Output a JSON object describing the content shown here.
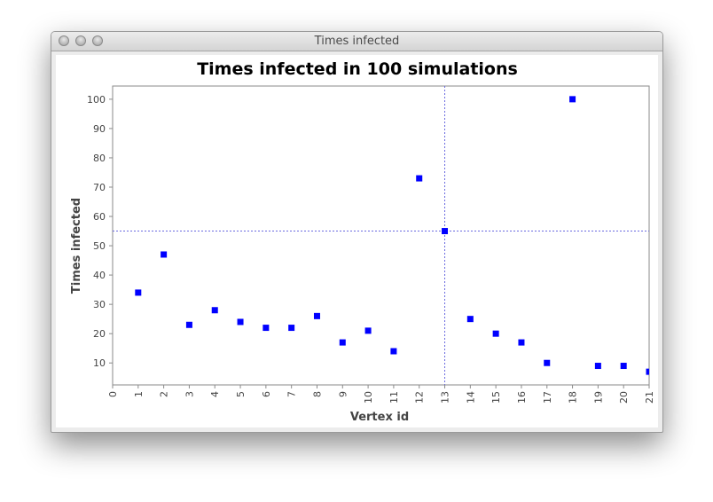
{
  "window": {
    "title": "Times infected"
  },
  "chart_data": {
    "type": "scatter",
    "title": "Times infected in 100 simulations",
    "xlabel": "Vertex id",
    "ylabel": "Times infected",
    "xlim": [
      0,
      21
    ],
    "ylim": [
      2.5,
      104.5
    ],
    "x_ticks": [
      0,
      1,
      2,
      3,
      4,
      5,
      6,
      7,
      8,
      9,
      10,
      11,
      12,
      13,
      14,
      15,
      16,
      17,
      18,
      19,
      20,
      21
    ],
    "y_ticks": [
      10,
      20,
      30,
      40,
      50,
      60,
      70,
      80,
      90,
      100
    ],
    "grid": false,
    "crosshair": {
      "x": 13,
      "y": 55
    },
    "marker_color": "#0000ff",
    "crosshair_color": "#6a6ae0",
    "series": [
      {
        "x": [
          1,
          2,
          3,
          4,
          5,
          6,
          7,
          8,
          9,
          10,
          11,
          12,
          13,
          14,
          15,
          16,
          17,
          18,
          19,
          20,
          21
        ],
        "y": [
          34,
          47,
          23,
          28,
          24,
          22,
          22,
          26,
          17,
          21,
          14,
          73,
          55,
          25,
          20,
          17,
          10,
          100,
          9,
          9,
          7
        ]
      }
    ]
  }
}
